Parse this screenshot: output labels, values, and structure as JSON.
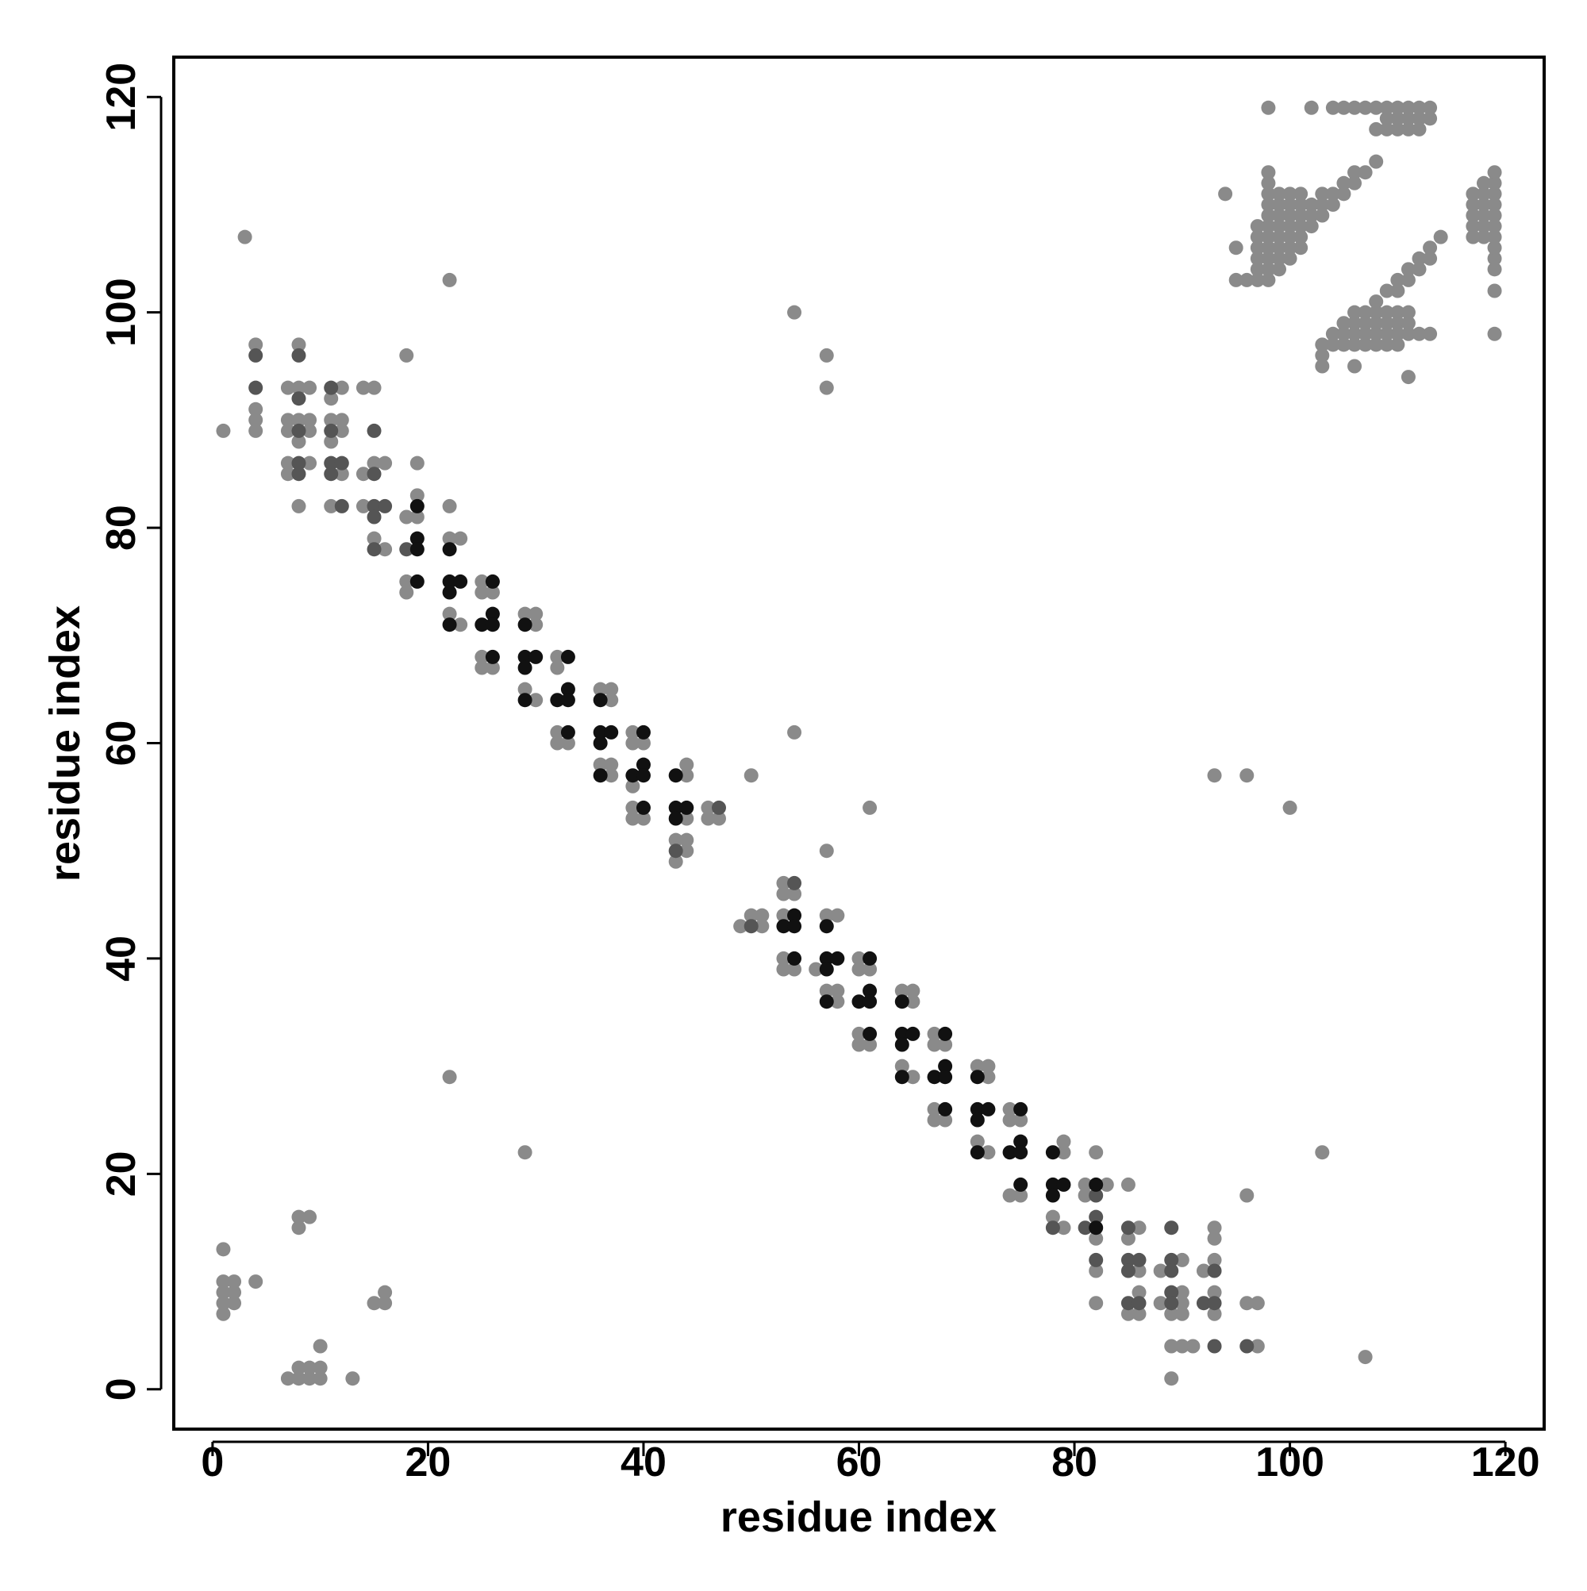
{
  "chart_data": {
    "type": "scatter",
    "x_label": "residue index",
    "y_label": "residue index",
    "xlim": [
      -3.6,
      123.6
    ],
    "ylim": [
      -3.7,
      123.7
    ],
    "xticks": [
      0,
      20,
      40,
      60,
      80,
      100,
      120
    ],
    "yticks": [
      0,
      20,
      40,
      60,
      80,
      100,
      120
    ],
    "series": [
      {
        "color": "#8a8a8a",
        "x": [
          1,
          1,
          1,
          1,
          1,
          2,
          2,
          2,
          4,
          8,
          9,
          8,
          15,
          16,
          16,
          7,
          8,
          8,
          9,
          9,
          10,
          10,
          10,
          13,
          22,
          29,
          3,
          22,
          1,
          4,
          4,
          4,
          4,
          7,
          7,
          7,
          7,
          7,
          8,
          8,
          8,
          8,
          8,
          9,
          9,
          9,
          9,
          11,
          11,
          11,
          11,
          12,
          12,
          12,
          12,
          14,
          14,
          14,
          15,
          15,
          15,
          16,
          16,
          18,
          18,
          18,
          18,
          19,
          19,
          19,
          22,
          22,
          23,
          22,
          23,
          25,
          25,
          26,
          25,
          25,
          26,
          29,
          30,
          30,
          29,
          30,
          32,
          32,
          32,
          32,
          33,
          36,
          37,
          37,
          36,
          37,
          37,
          39,
          39,
          40,
          39,
          39,
          39,
          40,
          44,
          44,
          44,
          43,
          44,
          44,
          43,
          46,
          46,
          47,
          50,
          54,
          61,
          57,
          49,
          50,
          51,
          51,
          53,
          53,
          54,
          53,
          53,
          53,
          54,
          56,
          57,
          58,
          57,
          58,
          58,
          60,
          60,
          61,
          60,
          60,
          61,
          64,
          65,
          65,
          64,
          65,
          67,
          67,
          68,
          67,
          67,
          68,
          71,
          72,
          72,
          71,
          72,
          74,
          74,
          75,
          74,
          75,
          79,
          79,
          78,
          79,
          81,
          83,
          81,
          82,
          82,
          82,
          82,
          85,
          86,
          85,
          86,
          86,
          85,
          86,
          88,
          90,
          90,
          88,
          90,
          89,
          90,
          92,
          93,
          93,
          93,
          93,
          93,
          89,
          90,
          91,
          97,
          96,
          97,
          89,
          96,
          103,
          107,
          93,
          96,
          100,
          54,
          57,
          57
        ],
        "values": [
          13,
          10,
          9,
          8,
          7,
          10,
          9,
          8,
          10,
          16,
          16,
          15,
          8,
          9,
          8,
          1,
          1,
          2,
          2,
          1,
          2,
          1,
          4,
          1,
          29,
          22,
          107,
          103,
          89,
          97,
          91,
          90,
          89,
          93,
          90,
          89,
          86,
          85,
          97,
          93,
          90,
          88,
          82,
          93,
          90,
          89,
          86,
          92,
          90,
          88,
          82,
          93,
          90,
          89,
          85,
          93,
          85,
          82,
          93,
          86,
          79,
          86,
          78,
          96,
          81,
          75,
          74,
          86,
          83,
          81,
          82,
          79,
          79,
          72,
          71,
          75,
          74,
          74,
          68,
          67,
          67,
          72,
          72,
          71,
          65,
          64,
          68,
          67,
          61,
          60,
          60,
          65,
          65,
          64,
          58,
          58,
          57,
          61,
          60,
          60,
          56,
          54,
          53,
          53,
          58,
          57,
          53,
          51,
          51,
          50,
          49,
          54,
          53,
          53,
          57,
          61,
          54,
          50,
          43,
          44,
          44,
          43,
          47,
          46,
          46,
          44,
          40,
          39,
          39,
          39,
          44,
          44,
          37,
          37,
          36,
          40,
          39,
          39,
          33,
          32,
          32,
          37,
          37,
          36,
          30,
          29,
          33,
          32,
          32,
          26,
          25,
          25,
          30,
          30,
          29,
          23,
          22,
          26,
          25,
          25,
          18,
          18,
          23,
          22,
          16,
          15,
          19,
          19,
          18,
          22,
          14,
          11,
          8,
          19,
          15,
          14,
          11,
          9,
          7,
          7,
          11,
          12,
          9,
          8,
          8,
          7,
          7,
          11,
          12,
          15,
          14,
          9,
          7,
          4,
          4,
          4,
          4,
          8,
          8,
          1,
          18,
          22,
          3,
          57,
          57,
          54,
          100,
          96,
          93
        ]
      },
      {
        "color": "#8a8a8a",
        "x": [
          98,
          102,
          104,
          105,
          106,
          107,
          108,
          109,
          110,
          111,
          112,
          113,
          109,
          110,
          111,
          112,
          113,
          108,
          109,
          110,
          111,
          112,
          108,
          106,
          107,
          105,
          106,
          94,
          103,
          104,
          105,
          102,
          103,
          104,
          102,
          103,
          102,
          97,
          97,
          97,
          97,
          97,
          97,
          98,
          98,
          98,
          98,
          98,
          98,
          98,
          98,
          98,
          98,
          98,
          99,
          99,
          99,
          99,
          99,
          99,
          99,
          99,
          100,
          100,
          100,
          100,
          100,
          100,
          100,
          101,
          101,
          101,
          101,
          101,
          101,
          96,
          95,
          95,
          106,
          107,
          108,
          109,
          110,
          111,
          105,
          106,
          107,
          108,
          109,
          110,
          111,
          104,
          105,
          106,
          107,
          108,
          109,
          110,
          111,
          112,
          113,
          103,
          104,
          105,
          106,
          107,
          108,
          109,
          110,
          103,
          103,
          106,
          111,
          108,
          109,
          110,
          111,
          112,
          113,
          114,
          110,
          111,
          112,
          113,
          119,
          119,
          119,
          119,
          119,
          119,
          119,
          119,
          119,
          119,
          119,
          119,
          118,
          118,
          118,
          118,
          118,
          118,
          117,
          117,
          117,
          117,
          117
        ],
        "values": [
          119,
          119,
          119,
          119,
          119,
          119,
          119,
          119,
          119,
          119,
          119,
          119,
          118,
          118,
          118,
          118,
          118,
          117,
          117,
          117,
          117,
          117,
          114,
          113,
          113,
          112,
          112,
          111,
          111,
          111,
          111,
          110,
          110,
          110,
          109,
          109,
          108,
          103,
          104,
          105,
          106,
          107,
          108,
          103,
          104,
          105,
          106,
          107,
          108,
          109,
          110,
          111,
          112,
          113,
          104,
          105,
          106,
          107,
          108,
          109,
          110,
          111,
          105,
          106,
          107,
          108,
          109,
          110,
          111,
          106,
          107,
          108,
          109,
          110,
          111,
          103,
          103,
          106,
          100,
          100,
          100,
          100,
          100,
          100,
          99,
          99,
          99,
          99,
          99,
          99,
          99,
          98,
          98,
          98,
          98,
          98,
          98,
          98,
          98,
          98,
          98,
          97,
          97,
          97,
          97,
          97,
          97,
          97,
          97,
          96,
          95,
          95,
          94,
          101,
          102,
          103,
          104,
          105,
          106,
          107,
          102,
          103,
          104,
          105,
          98,
          102,
          104,
          105,
          106,
          107,
          108,
          109,
          110,
          111,
          112,
          113,
          107,
          108,
          109,
          110,
          111,
          112,
          107,
          108,
          109,
          110,
          111
        ]
      },
      {
        "color": "#555555",
        "x": [
          4,
          4,
          8,
          8,
          8,
          8,
          8,
          11,
          11,
          11,
          11,
          12,
          12,
          15,
          15,
          15,
          15,
          15,
          16,
          18,
          43,
          47,
          50,
          54,
          82,
          82,
          81,
          82,
          85,
          85,
          86,
          85,
          85,
          86,
          89,
          89,
          89,
          89,
          89,
          93,
          92,
          93,
          93,
          96,
          78
        ],
        "values": [
          96,
          93,
          96,
          92,
          89,
          86,
          85,
          93,
          89,
          86,
          85,
          86,
          82,
          89,
          85,
          82,
          81,
          78,
          82,
          78,
          50,
          54,
          43,
          47,
          18,
          16,
          15,
          12,
          15,
          12,
          12,
          11,
          8,
          8,
          12,
          11,
          9,
          8,
          15,
          11,
          8,
          8,
          4,
          4,
          15
        ]
      },
      {
        "color": "#111111",
        "x": [
          19,
          19,
          19,
          19,
          22,
          22,
          23,
          22,
          22,
          26,
          25,
          26,
          26,
          26,
          29,
          29,
          30,
          29,
          29,
          33,
          32,
          33,
          33,
          33,
          36,
          36,
          37,
          36,
          36,
          40,
          39,
          40,
          40,
          40,
          43,
          43,
          44,
          43,
          54,
          53,
          54,
          54,
          57,
          57,
          58,
          57,
          57,
          61,
          60,
          61,
          61,
          61,
          64,
          64,
          65,
          64,
          64,
          68,
          67,
          68,
          68,
          68,
          71,
          71,
          72,
          71,
          71,
          75,
          74,
          75,
          75,
          75,
          78,
          78,
          79,
          78,
          82,
          82
        ],
        "values": [
          82,
          79,
          78,
          75,
          78,
          75,
          75,
          74,
          71,
          75,
          71,
          72,
          71,
          68,
          71,
          68,
          68,
          67,
          64,
          68,
          64,
          65,
          64,
          61,
          64,
          61,
          61,
          60,
          57,
          61,
          57,
          58,
          57,
          54,
          57,
          54,
          54,
          53,
          44,
          43,
          43,
          40,
          43,
          40,
          40,
          39,
          36,
          40,
          36,
          37,
          36,
          33,
          36,
          33,
          33,
          32,
          29,
          33,
          29,
          30,
          29,
          26,
          29,
          26,
          26,
          25,
          22,
          26,
          22,
          23,
          22,
          19,
          22,
          19,
          19,
          18,
          19,
          15
        ]
      }
    ]
  }
}
